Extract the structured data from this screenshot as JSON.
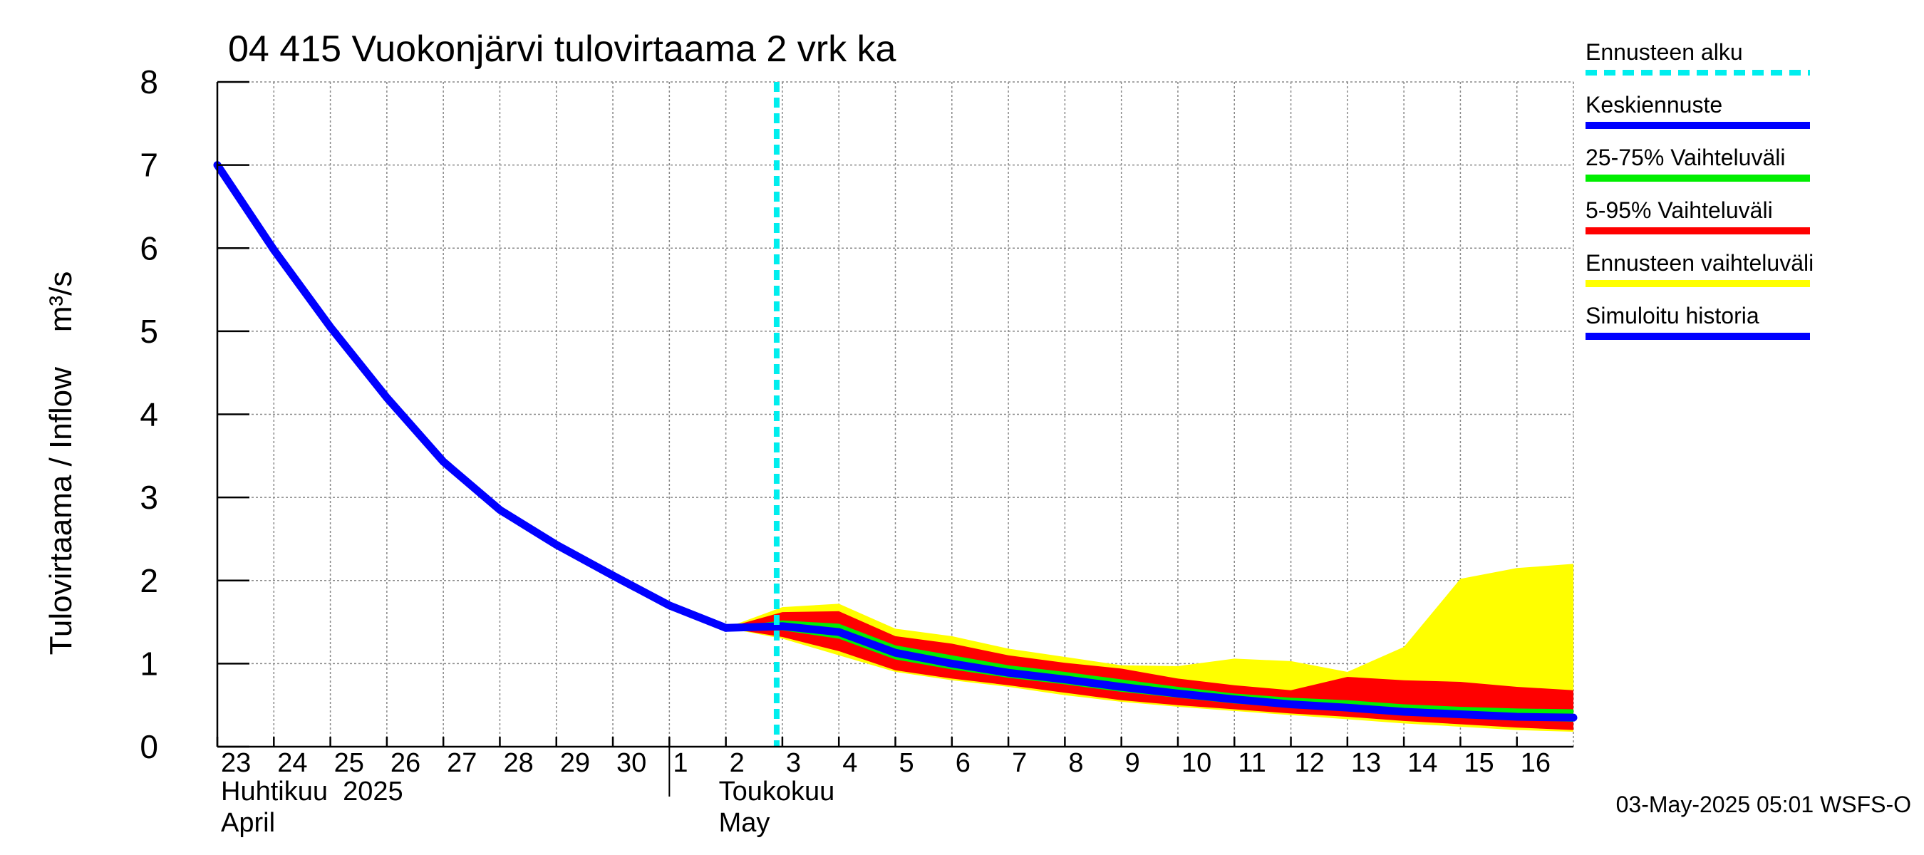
{
  "chart_data": {
    "type": "line",
    "title": "04 415 Vuokonjärvi tulovirtaama 2 vrk ka",
    "ylabel": "Tulovirtaama / Inflow    m³/s",
    "ylim": [
      0,
      8
    ],
    "yticks": [
      "0",
      "1",
      "2",
      "3",
      "4",
      "5",
      "6",
      "7",
      "8"
    ],
    "x_day_start": 0,
    "x_day_end": 24,
    "xticks": [
      {
        "day": 0,
        "label": "23"
      },
      {
        "day": 1,
        "label": "24"
      },
      {
        "day": 2,
        "label": "25"
      },
      {
        "day": 3,
        "label": "26"
      },
      {
        "day": 4,
        "label": "27"
      },
      {
        "day": 5,
        "label": "28"
      },
      {
        "day": 6,
        "label": "29"
      },
      {
        "day": 7,
        "label": "30"
      },
      {
        "day": 8,
        "label": "1"
      },
      {
        "day": 9,
        "label": "2"
      },
      {
        "day": 10,
        "label": "3"
      },
      {
        "day": 11,
        "label": "4"
      },
      {
        "day": 12,
        "label": "5"
      },
      {
        "day": 13,
        "label": "6"
      },
      {
        "day": 14,
        "label": "7"
      },
      {
        "day": 15,
        "label": "8"
      },
      {
        "day": 16,
        "label": "9"
      },
      {
        "day": 17,
        "label": "10"
      },
      {
        "day": 18,
        "label": "11"
      },
      {
        "day": 19,
        "label": "12"
      },
      {
        "day": 20,
        "label": "13"
      },
      {
        "day": 21,
        "label": "14"
      },
      {
        "day": 22,
        "label": "15"
      },
      {
        "day": 23,
        "label": "16"
      }
    ],
    "month_labels": {
      "april_fi": "Huhtikuu  2025",
      "april_en": "April",
      "may_fi": "Toukokuu",
      "may_en": "May",
      "month_divider_day": 8,
      "april_label_day": 0,
      "may_label_day": 9
    },
    "forecast_start_day": 10,
    "series": {
      "history": {
        "name": "Simuloitu historia",
        "x": [
          0,
          1,
          2,
          3,
          4,
          5,
          6,
          7,
          8,
          9
        ],
        "y": [
          7.0,
          5.98,
          5.05,
          4.2,
          3.43,
          2.85,
          2.43,
          2.06,
          1.7,
          1.43
        ]
      },
      "ensemble_range": {
        "name": "Ennusteen vaihteluväli",
        "x": [
          9,
          10,
          11,
          12,
          13,
          14,
          15,
          16,
          17,
          18,
          19,
          20,
          21,
          22,
          23,
          24
        ],
        "lower": [
          1.43,
          1.3,
          1.1,
          0.9,
          0.8,
          0.72,
          0.62,
          0.54,
          0.48,
          0.43,
          0.38,
          0.33,
          0.28,
          0.24,
          0.2,
          0.18
        ],
        "upper": [
          1.43,
          1.68,
          1.72,
          1.42,
          1.33,
          1.18,
          1.08,
          0.98,
          0.97,
          1.06,
          1.03,
          0.9,
          1.2,
          2.02,
          2.15,
          2.2
        ]
      },
      "p5_95": {
        "name": "5-95% Vaihteluväli",
        "x": [
          9,
          10,
          11,
          12,
          13,
          14,
          15,
          16,
          17,
          18,
          19,
          20,
          21,
          22,
          23,
          24
        ],
        "lower": [
          1.43,
          1.32,
          1.15,
          0.92,
          0.82,
          0.74,
          0.65,
          0.56,
          0.5,
          0.45,
          0.4,
          0.36,
          0.31,
          0.27,
          0.23,
          0.2
        ],
        "upper": [
          1.43,
          1.62,
          1.63,
          1.33,
          1.24,
          1.1,
          1.01,
          0.94,
          0.82,
          0.74,
          0.68,
          0.84,
          0.8,
          0.78,
          0.72,
          0.68
        ]
      },
      "p25_75": {
        "name": "25-75% Vaihteluväli",
        "x": [
          9,
          10,
          11,
          12,
          13,
          14,
          15,
          16,
          17,
          18,
          19,
          20,
          21,
          22,
          23,
          24
        ],
        "lower": [
          1.43,
          1.4,
          1.3,
          1.05,
          0.93,
          0.83,
          0.75,
          0.66,
          0.59,
          0.52,
          0.47,
          0.43,
          0.38,
          0.35,
          0.32,
          0.3
        ],
        "upper": [
          1.43,
          1.52,
          1.48,
          1.22,
          1.1,
          0.98,
          0.9,
          0.81,
          0.72,
          0.64,
          0.59,
          0.56,
          0.51,
          0.48,
          0.46,
          0.45
        ]
      },
      "median": {
        "name": "Keskiennuste",
        "x": [
          9,
          10,
          11,
          12,
          13,
          14,
          15,
          16,
          17,
          18,
          19,
          20,
          21,
          22,
          23,
          24
        ],
        "y": [
          1.43,
          1.45,
          1.38,
          1.13,
          1.0,
          0.89,
          0.81,
          0.72,
          0.64,
          0.57,
          0.51,
          0.47,
          0.42,
          0.39,
          0.36,
          0.35
        ]
      }
    }
  },
  "legend": {
    "forecast_start": "Ennusteen alku",
    "median": "Keskiennuste",
    "p25_75": "25-75% Vaihteluväli",
    "p5_95": "5-95% Vaihteluväli",
    "ensemble": "Ennusteen vaihteluväli",
    "history": "Simuloitu historia"
  },
  "colors": {
    "history": "#0000ff",
    "median": "#0000ff",
    "p25_75": "#00ee00",
    "p5_95": "#ff0000",
    "ensemble": "#ffff00",
    "forecast_start": "#00eeee",
    "grid": "#888888"
  },
  "footer": "03-May-2025 05:01 WSFS-O"
}
